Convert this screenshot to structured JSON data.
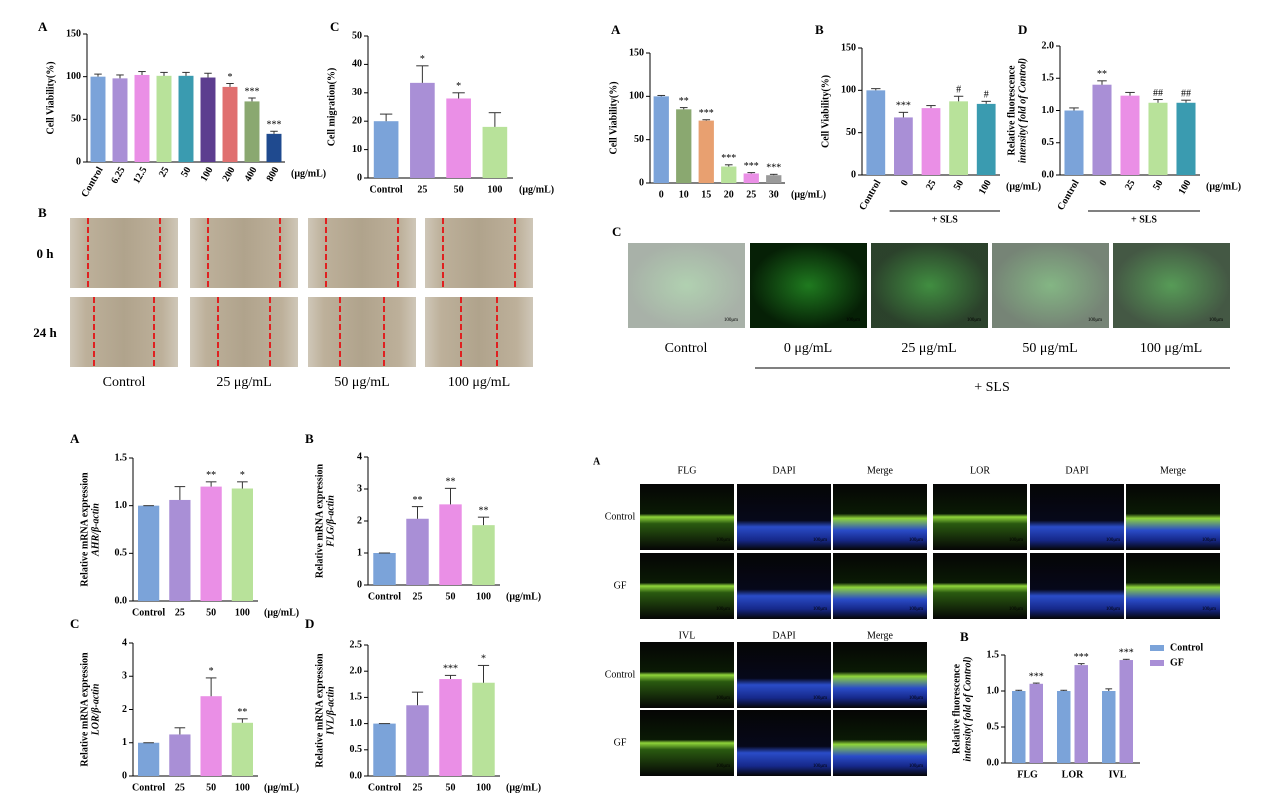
{
  "chart_data": [
    {
      "type": "bar",
      "label": "A",
      "ylabel": "Cell Viability(%)",
      "xunit": "(μg/mL)",
      "categories": [
        "Control",
        "6.25",
        "12.5",
        "25",
        "50",
        "100",
        "200",
        "400",
        "800"
      ],
      "values": [
        100,
        98,
        102,
        101,
        101,
        99,
        88,
        71,
        33
      ],
      "errors": [
        3,
        4,
        4,
        4,
        4,
        5,
        4,
        4,
        3
      ],
      "annotations": [
        null,
        null,
        null,
        null,
        null,
        null,
        "*",
        "***",
        "***"
      ],
      "colors": [
        "#7ba3d9",
        "#a98fd6",
        "#ea8fe6",
        "#b8e29a",
        "#3a9bb0",
        "#5c3d8f",
        "#e07070",
        "#8aa870",
        "#1f4a8f"
      ],
      "ylim": [
        0,
        150
      ],
      "yticks": [
        0,
        50,
        100,
        150
      ]
    },
    {
      "type": "bar",
      "label": "C",
      "ylabel": "Cell migration(%)",
      "xunit": "(μg/mL)",
      "categories": [
        "Control",
        "25",
        "50",
        "100"
      ],
      "values": [
        20,
        33.5,
        28,
        18
      ],
      "errors": [
        2.5,
        6,
        2,
        5
      ],
      "annotations": [
        null,
        "*",
        "*",
        null
      ],
      "colors": [
        "#7ba3d9",
        "#a98fd6",
        "#ea8fe6",
        "#b8e29a"
      ],
      "ylim": [
        0,
        50
      ],
      "yticks": [
        0,
        10,
        20,
        30,
        40,
        50
      ]
    },
    {
      "type": "bar",
      "label": "A",
      "ylabel": "Cell Viability(%)",
      "xunit": "(μg/mL)",
      "categories": [
        "0",
        "10",
        "15",
        "20",
        "25",
        "30"
      ],
      "values": [
        100,
        85,
        72,
        19,
        11,
        9
      ],
      "errors": [
        1,
        2,
        1,
        2,
        1,
        1
      ],
      "annotations": [
        null,
        "**",
        "***",
        "***",
        "***",
        "***"
      ],
      "colors": [
        "#7ba3d9",
        "#8aa870",
        "#e8a070",
        "#b8e29a",
        "#ea8fe6",
        "#9a9a9a"
      ],
      "ylim": [
        0,
        150
      ],
      "yticks": [
        0,
        50,
        100,
        150
      ]
    },
    {
      "type": "bar",
      "label": "B",
      "ylabel": "Cell Viability(%)",
      "xunit": "(μg/mL)",
      "group_label": "+ SLS",
      "categories": [
        "Control",
        "0",
        "25",
        "50",
        "100"
      ],
      "values": [
        100,
        68,
        79,
        87,
        84
      ],
      "errors": [
        2,
        6,
        3,
        6,
        3
      ],
      "annotations": [
        null,
        "***",
        null,
        "#",
        "#"
      ],
      "colors": [
        "#7ba3d9",
        "#a98fd6",
        "#ea8fe6",
        "#b8e29a",
        "#3a9bb0"
      ],
      "ylim": [
        0,
        150
      ],
      "yticks": [
        0,
        50,
        100,
        150
      ]
    },
    {
      "type": "bar",
      "label": "D",
      "ylabel": "Relative fluorescence",
      "ylabel2": "intensity( fold of Control)",
      "xunit": "(μg/mL)",
      "group_label": "+ SLS",
      "categories": [
        "Control",
        "0",
        "25",
        "50",
        "100"
      ],
      "values": [
        1.0,
        1.4,
        1.23,
        1.12,
        1.12
      ],
      "errors": [
        0.04,
        0.06,
        0.05,
        0.05,
        0.04
      ],
      "annotations": [
        null,
        "**",
        null,
        "##",
        "##"
      ],
      "colors": [
        "#7ba3d9",
        "#a98fd6",
        "#ea8fe6",
        "#b8e29a",
        "#3a9bb0"
      ],
      "ylim": [
        0,
        2
      ],
      "yticks": [
        {
          "value": 0,
          "label": "0.0"
        },
        0.5,
        {
          "value": 1,
          "label": "1.0"
        },
        1.5,
        {
          "value": 2,
          "label": "2.0"
        }
      ]
    },
    {
      "type": "bar",
      "label": "A",
      "ylabel": "Relative mRNA expression",
      "ylabel2": "AHR/β-actin",
      "xunit": "(μg/mL)",
      "categories": [
        "Control",
        "25",
        "50",
        "100"
      ],
      "values": [
        1.0,
        1.06,
        1.2,
        1.18
      ],
      "errors": [
        0,
        0.14,
        0.05,
        0.07
      ],
      "annotations": [
        null,
        null,
        "**",
        "*"
      ],
      "colors": [
        "#7ba3d9",
        "#a98fd6",
        "#ea8fe6",
        "#b8e29a"
      ],
      "ylim": [
        0,
        1.5
      ],
      "yticks": [
        {
          "value": 0,
          "label": "0.0"
        },
        0.5,
        {
          "value": 1,
          "label": "1.0"
        },
        1.5
      ]
    },
    {
      "type": "bar",
      "label": "B",
      "ylabel": "Relative mRNA expression",
      "ylabel2": "FLG/β-actin",
      "xunit": "(μg/mL)",
      "categories": [
        "Control",
        "25",
        "50",
        "100"
      ],
      "values": [
        1.0,
        2.07,
        2.52,
        1.87
      ],
      "errors": [
        0,
        0.38,
        0.5,
        0.25
      ],
      "annotations": [
        null,
        "**",
        "**",
        "**"
      ],
      "colors": [
        "#7ba3d9",
        "#a98fd6",
        "#ea8fe6",
        "#b8e29a"
      ],
      "ylim": [
        0,
        4
      ],
      "yticks": [
        0,
        1,
        2,
        3,
        4
      ]
    },
    {
      "type": "bar",
      "label": "C",
      "ylabel": "Relative mRNA expression",
      "ylabel2": "LOR/β-actin",
      "xunit": "(μg/mL)",
      "categories": [
        "Control",
        "25",
        "50",
        "100"
      ],
      "values": [
        1.0,
        1.25,
        2.4,
        1.6
      ],
      "errors": [
        0,
        0.2,
        0.55,
        0.12
      ],
      "annotations": [
        null,
        null,
        "*",
        "**"
      ],
      "colors": [
        "#7ba3d9",
        "#a98fd6",
        "#ea8fe6",
        "#b8e29a"
      ],
      "ylim": [
        0,
        4
      ],
      "yticks": [
        0,
        1,
        2,
        3,
        4
      ]
    },
    {
      "type": "bar",
      "label": "D",
      "ylabel": "Relative mRNA expression",
      "ylabel2": "IVL/β-actin",
      "xunit": "(μg/mL)",
      "categories": [
        "Control",
        "25",
        "50",
        "100"
      ],
      "values": [
        1.0,
        1.35,
        1.85,
        1.78
      ],
      "errors": [
        0,
        0.25,
        0.07,
        0.33
      ],
      "annotations": [
        null,
        null,
        "***",
        "*"
      ],
      "colors": [
        "#7ba3d9",
        "#a98fd6",
        "#ea8fe6",
        "#b8e29a"
      ],
      "ylim": [
        0,
        2.5
      ],
      "yticks": [
        {
          "value": 0,
          "label": "0.0"
        },
        0.5,
        {
          "value": 1,
          "label": "1.0"
        },
        1.5,
        {
          "value": 2,
          "label": "2.0"
        },
        2.5
      ]
    },
    {
      "type": "grouped-bar",
      "label": "B",
      "ylabel": "Relative fluorescence",
      "ylabel2": "intensity( fold of Control)",
      "categories": [
        "FLG",
        "LOR",
        "IVL"
      ],
      "series": [
        {
          "name": "Control",
          "color": "#7ba3d9",
          "values": [
            1.0,
            1.0,
            1.0
          ],
          "errors": [
            0.01,
            0.01,
            0.03
          ],
          "annotations": [
            null,
            null,
            null
          ]
        },
        {
          "name": "GF",
          "color": "#a98fd6",
          "values": [
            1.1,
            1.36,
            1.43
          ],
          "errors": [
            0.01,
            0.02,
            0.01
          ],
          "annotations": [
            "***",
            "***",
            "***"
          ]
        }
      ],
      "ylim": [
        0,
        1.5
      ],
      "yticks": [
        {
          "value": 0,
          "label": "0.0"
        },
        0.5,
        {
          "value": 1,
          "label": "1.0"
        },
        1.5
      ]
    }
  ],
  "wound_panel": {
    "label": "B",
    "rows": [
      "0 h",
      "24 h"
    ],
    "columns": [
      "Control",
      "25 μg/mL",
      "50 μg/mL",
      "100 μg/mL"
    ]
  },
  "ros_panel": {
    "label": "C",
    "columns": [
      "Control",
      "0 μg/mL",
      "25 μg/mL",
      "50 μg/mL",
      "100 μg/mL"
    ],
    "group_label": "+ SLS",
    "scale": "100μm"
  },
  "if_panel": {
    "label": "A",
    "headers_top": [
      "FLG",
      "DAPI",
      "Merge",
      "LOR",
      "DAPI",
      "Merge"
    ],
    "headers_bottom": [
      "IVL",
      "DAPI",
      "Merge"
    ],
    "rows": [
      "Control",
      "GF"
    ],
    "scale": "100μm"
  }
}
